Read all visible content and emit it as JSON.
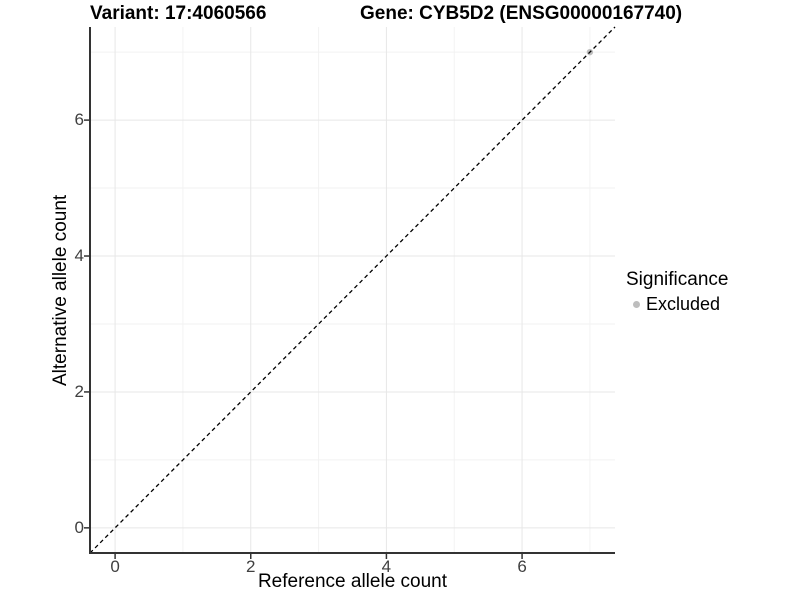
{
  "chart_data": {
    "type": "scatter",
    "variant_title": "Variant: 17:4060566",
    "gene_title": "Gene: CYB5D2 (ENSG00000167740)",
    "xlabel": "Reference allele count",
    "ylabel": "Alternative allele count",
    "xlim": [
      -0.37,
      7.37
    ],
    "ylim": [
      -0.37,
      7.37
    ],
    "x_major_ticks": [
      0,
      2,
      4,
      6
    ],
    "x_minor_ticks": [
      1,
      3,
      5,
      7
    ],
    "y_major_ticks": [
      0,
      2,
      4,
      6
    ],
    "y_minor_ticks": [
      1,
      3,
      5,
      7
    ],
    "grid": "major+minor",
    "reference_line": {
      "type": "identity",
      "slope": 1,
      "intercept": 0,
      "line_style": "dashed",
      "color": "#000000"
    },
    "series": [
      {
        "name": "Excluded",
        "marker": "circle",
        "color": "#bebebe",
        "points": [
          {
            "x": 7,
            "y": 7
          }
        ]
      }
    ],
    "legend": {
      "title": "Significance",
      "position": "right",
      "entries": [
        {
          "label": "Excluded",
          "color": "#bebebe",
          "marker": "circle"
        }
      ]
    },
    "style": {
      "panel_background": "#ffffff",
      "major_grid_color": "#e7e7e7",
      "minor_grid_color": "#f2f2f2",
      "axis_line_color": "#333333",
      "tick_label_color": "#404040"
    }
  }
}
